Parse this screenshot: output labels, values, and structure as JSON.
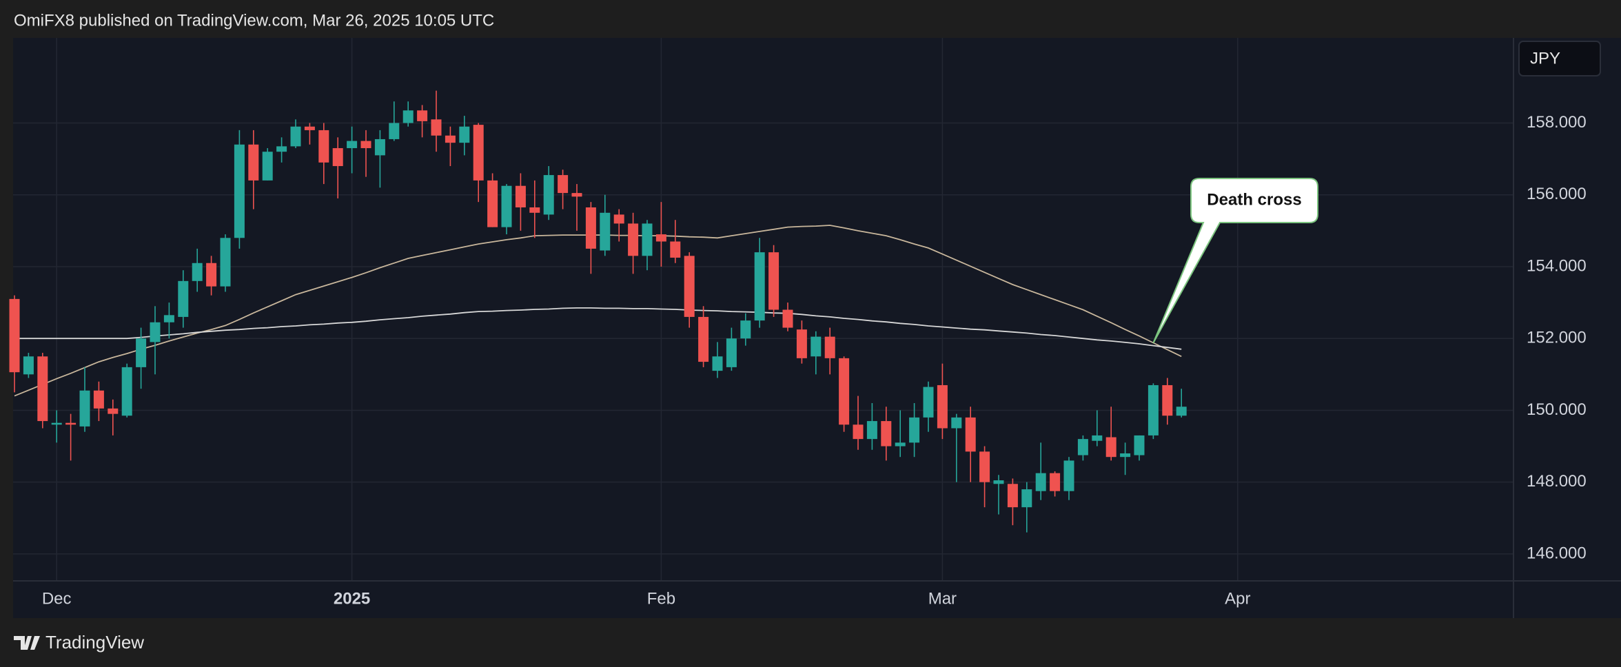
{
  "header": {
    "text": "OmiFX8 published on TradingView.com, Mar 26, 2025 10:05 UTC"
  },
  "footer": {
    "brand": "TradingView"
  },
  "chart_data": {
    "type": "candlestick",
    "currency": "JPY",
    "annotation": "Death cross",
    "up_color": "#26a69a",
    "down_color": "#ef5350",
    "categories": [
      null,
      null,
      null,
      "Dec",
      null,
      null,
      null,
      null,
      null,
      null,
      null,
      null,
      null,
      null,
      null,
      null,
      null,
      null,
      null,
      null,
      null,
      null,
      null,
      null,
      "2025",
      null,
      null,
      null,
      null,
      null,
      null,
      null,
      null,
      null,
      null,
      null,
      null,
      null,
      null,
      null,
      null,
      null,
      null,
      null,
      null,
      null,
      "Feb",
      null,
      null,
      null,
      null,
      null,
      null,
      null,
      null,
      null,
      null,
      null,
      null,
      null,
      null,
      null,
      null,
      null,
      null,
      null,
      "Mar",
      null,
      null,
      null,
      null,
      null,
      null,
      null,
      null,
      null,
      null,
      null,
      null,
      null,
      null,
      null,
      null,
      null,
      null,
      null,
      null,
      "Apr",
      null,
      null,
      null,
      null,
      null,
      null,
      null,
      null,
      null,
      null,
      null,
      null,
      null,
      null,
      null,
      null,
      null,
      null,
      null
    ],
    "open": [
      153.1,
      151.0,
      151.5,
      149.6,
      149.65,
      149.55,
      150.55,
      150.05,
      149.85,
      151.2,
      151.9,
      152.45,
      152.6,
      153.6,
      154.1,
      153.45,
      154.8,
      157.4,
      156.4,
      157.2,
      157.35,
      157.9,
      157.8,
      157.3,
      157.3,
      157.5,
      157.1,
      157.55,
      158.0,
      158.35,
      158.1,
      157.65,
      157.45,
      157.95,
      156.4,
      155.1,
      156.25,
      155.65,
      155.45,
      156.55,
      156.05,
      155.65,
      154.45,
      155.45,
      155.2,
      154.3,
      154.9,
      154.7,
      154.3,
      152.6,
      151.1,
      151.2,
      152.0,
      152.5,
      154.4,
      152.8,
      152.25,
      151.5,
      152.05,
      151.45,
      149.6,
      149.2,
      149.7,
      149.0,
      149.1,
      149.8,
      150.7,
      149.5,
      149.8,
      148.85,
      147.95,
      147.95,
      147.3,
      147.75,
      148.25,
      147.75,
      148.75,
      149.15,
      149.25,
      148.7,
      148.75,
      149.3,
      150.7,
      149.85,
      null,
      null,
      null,
      null,
      null,
      null,
      null,
      null,
      null,
      null,
      null,
      null,
      null,
      null,
      null,
      null,
      null,
      null,
      null,
      null,
      null,
      null,
      null
    ],
    "high": [
      153.2,
      151.6,
      151.6,
      150.0,
      149.9,
      151.2,
      150.8,
      150.3,
      151.3,
      152.3,
      152.9,
      153.0,
      153.9,
      154.5,
      154.3,
      154.9,
      157.8,
      157.8,
      157.3,
      157.6,
      158.1,
      158.0,
      158.0,
      157.6,
      157.9,
      157.8,
      157.8,
      158.6,
      158.6,
      158.5,
      158.9,
      157.9,
      158.2,
      158.0,
      156.6,
      156.3,
      156.6,
      156.4,
      156.8,
      156.7,
      156.3,
      155.8,
      156.0,
      155.6,
      155.5,
      155.3,
      155.8,
      155.3,
      154.4,
      152.9,
      151.9,
      152.3,
      152.7,
      154.8,
      154.6,
      153.0,
      152.5,
      152.2,
      152.3,
      151.5,
      150.4,
      150.2,
      150.1,
      150.0,
      150.2,
      150.8,
      151.3,
      149.9,
      150.1,
      149.0,
      148.2,
      148.1,
      148.0,
      149.1,
      148.3,
      148.7,
      149.3,
      150.0,
      150.1,
      149.1,
      149.3,
      150.75,
      150.9,
      150.6,
      null,
      null,
      null,
      null,
      null,
      null,
      null,
      null,
      null,
      null,
      null,
      null,
      null,
      null,
      null,
      null,
      null,
      null,
      null,
      null,
      null,
      null,
      null
    ],
    "low": [
      150.5,
      150.9,
      149.5,
      149.1,
      148.6,
      149.4,
      149.7,
      149.3,
      149.8,
      150.6,
      151.0,
      152.0,
      152.3,
      153.3,
      153.2,
      153.3,
      154.5,
      155.6,
      156.4,
      156.9,
      157.3,
      157.4,
      156.3,
      155.9,
      156.6,
      156.5,
      156.2,
      157.5,
      157.9,
      157.6,
      157.2,
      156.8,
      157.1,
      155.8,
      155.1,
      154.9,
      155.0,
      154.8,
      155.3,
      155.6,
      155.0,
      153.8,
      154.3,
      154.7,
      153.8,
      153.9,
      154.0,
      154.1,
      152.3,
      151.2,
      150.9,
      151.1,
      151.8,
      152.3,
      152.6,
      152.2,
      151.3,
      151.0,
      151.0,
      149.4,
      148.9,
      148.9,
      148.6,
      148.7,
      148.7,
      149.4,
      149.2,
      148.0,
      148.0,
      147.3,
      147.1,
      146.8,
      146.6,
      147.5,
      147.6,
      147.5,
      148.6,
      149.0,
      148.6,
      148.2,
      148.6,
      149.2,
      149.6,
      149.8,
      null,
      null,
      null,
      null,
      null,
      null,
      null,
      null,
      null,
      null,
      null,
      null,
      null,
      null,
      null,
      null,
      null,
      null,
      null,
      null,
      null,
      null,
      null
    ],
    "close": [
      151.06,
      151.5,
      149.7,
      149.65,
      149.6,
      150.55,
      150.05,
      149.9,
      151.2,
      152.0,
      152.45,
      152.65,
      153.6,
      154.1,
      153.45,
      154.8,
      157.4,
      156.4,
      157.2,
      157.35,
      157.9,
      157.8,
      156.9,
      156.8,
      157.5,
      157.3,
      157.55,
      158.0,
      158.35,
      158.05,
      157.65,
      157.45,
      157.9,
      156.4,
      155.1,
      156.25,
      155.65,
      155.5,
      156.55,
      156.05,
      155.95,
      154.5,
      155.5,
      155.2,
      154.3,
      155.2,
      154.7,
      154.25,
      152.6,
      151.35,
      151.5,
      152.0,
      152.5,
      154.4,
      152.8,
      152.3,
      151.45,
      152.05,
      151.45,
      149.6,
      149.2,
      149.7,
      149.0,
      149.1,
      149.8,
      150.65,
      149.5,
      149.8,
      148.85,
      148.0,
      148.05,
      147.3,
      147.8,
      148.25,
      147.75,
      148.6,
      149.2,
      149.3,
      148.7,
      148.8,
      149.3,
      150.7,
      149.85,
      150.1,
      null,
      null,
      null,
      null,
      null,
      null,
      null,
      null,
      null,
      null,
      null,
      null,
      null,
      null,
      null,
      null,
      null,
      null,
      null,
      null,
      null,
      null,
      null
    ],
    "lines": [
      {
        "color": "#c9b79c",
        "values": [
          150.4,
          150.56,
          150.72,
          150.88,
          151.03,
          151.19,
          151.35,
          151.47,
          151.58,
          151.7,
          151.81,
          151.93,
          152.04,
          152.15,
          152.25,
          152.36,
          152.53,
          152.71,
          152.88,
          153.05,
          153.22,
          153.34,
          153.46,
          153.58,
          153.7,
          153.83,
          153.97,
          154.1,
          154.23,
          154.31,
          154.39,
          154.47,
          154.55,
          154.63,
          154.69,
          154.75,
          154.8,
          154.86,
          154.87,
          154.88,
          154.88,
          154.88,
          154.88,
          154.87,
          154.87,
          154.86,
          154.86,
          154.85,
          154.83,
          154.82,
          154.8,
          154.86,
          154.92,
          154.98,
          155.04,
          155.1,
          155.12,
          155.13,
          155.15,
          155.08,
          155.0,
          154.93,
          154.86,
          154.75,
          154.63,
          154.52,
          154.35,
          154.18,
          154.01,
          153.84,
          153.67,
          153.5,
          153.36,
          153.22,
          153.08,
          152.94,
          152.8,
          152.62,
          152.44,
          152.25,
          152.07,
          151.88,
          151.69,
          151.5,
          null,
          null,
          null,
          null,
          null,
          null,
          null,
          null,
          null,
          null,
          null,
          null,
          null,
          null,
          null,
          null,
          null,
          null,
          null,
          null,
          null,
          null,
          null
        ]
      },
      {
        "color": "#d8d8d8",
        "values": [
          152.0,
          152.0,
          152.0,
          152.0,
          152.0,
          152.0,
          152.0,
          152.0,
          152.0,
          152.03,
          152.07,
          152.1,
          152.13,
          152.17,
          152.2,
          152.23,
          152.25,
          152.28,
          152.3,
          152.33,
          152.35,
          152.38,
          152.4,
          152.43,
          152.45,
          152.48,
          152.52,
          152.55,
          152.58,
          152.62,
          152.65,
          152.68,
          152.72,
          152.75,
          152.76,
          152.78,
          152.79,
          152.81,
          152.82,
          152.84,
          152.85,
          152.85,
          152.84,
          152.84,
          152.83,
          152.83,
          152.82,
          152.81,
          152.79,
          152.78,
          152.77,
          152.75,
          152.74,
          152.73,
          152.71,
          152.7,
          152.67,
          152.63,
          152.6,
          152.56,
          152.53,
          152.49,
          152.46,
          152.42,
          152.39,
          152.35,
          152.32,
          152.29,
          152.26,
          152.24,
          152.21,
          152.18,
          152.15,
          152.11,
          152.08,
          152.04,
          152.0,
          151.96,
          151.93,
          151.89,
          151.85,
          151.8,
          151.75,
          151.7,
          null,
          null,
          null,
          null,
          null,
          null,
          null,
          null,
          null,
          null,
          null,
          null,
          null,
          null,
          null,
          null,
          null,
          null,
          null,
          null,
          null,
          null,
          null
        ]
      }
    ],
    "ylim": [
      145.25,
      160.36
    ],
    "yticks": [
      {
        "value": 146,
        "label": "146.000"
      },
      {
        "value": 148,
        "label": "148.000"
      },
      {
        "value": 150,
        "label": "150.000"
      },
      {
        "value": 152,
        "label": "152.000"
      },
      {
        "value": 154,
        "label": "154.000"
      },
      {
        "value": 156,
        "label": "156.000"
      },
      {
        "value": 158,
        "label": "158.000"
      }
    ],
    "grid": true
  }
}
